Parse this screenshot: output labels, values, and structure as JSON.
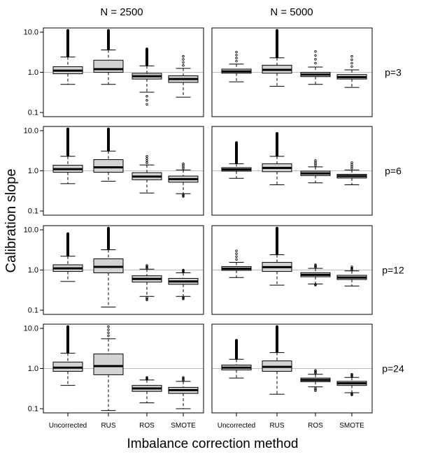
{
  "chart_data": {
    "type": "boxplot",
    "scale": "log10",
    "ylabel": "Calibration slope",
    "xlabel": "Imbalance correction method",
    "columns": [
      "N = 2500",
      "N = 5000"
    ],
    "rows": [
      "p=3",
      "p=6",
      "p=12",
      "p=24"
    ],
    "categories": [
      "Uncorrected",
      "RUS",
      "ROS",
      "SMOTE"
    ],
    "yticks": [
      {
        "value": 0.1,
        "label": "0.1"
      },
      {
        "value": 1.0,
        "label": "1.0"
      },
      {
        "value": 10.0,
        "label": "10.0"
      }
    ],
    "reference_line": 1.0,
    "panels": [
      {
        "row": "p=3",
        "column": "N = 2500",
        "boxes": [
          {
            "category": "Uncorrected",
            "whisker_low": 0.5,
            "q1": 0.92,
            "median": 1.1,
            "q3": 1.38,
            "whisker_high": 2.4,
            "outlier_max": 11.0
          },
          {
            "category": "RUS",
            "whisker_low": 0.5,
            "q1": 1.0,
            "median": 1.2,
            "q3": 2.0,
            "whisker_high": 3.6,
            "outlier_max": 11.0
          },
          {
            "category": "ROS",
            "whisker_low": 0.32,
            "q1": 0.68,
            "median": 0.8,
            "q3": 0.94,
            "whisker_high": 1.45,
            "outlier_max": 3.8,
            "outlier_min": 0.16
          },
          {
            "category": "SMOTE",
            "whisker_low": 0.24,
            "q1": 0.56,
            "median": 0.68,
            "q3": 0.82,
            "whisker_high": 1.25,
            "outlier_max": 2.5
          }
        ]
      },
      {
        "row": "p=3",
        "column": "N = 5000",
        "boxes": [
          {
            "category": "Uncorrected",
            "whisker_low": 0.58,
            "q1": 0.95,
            "median": 1.05,
            "q3": 1.2,
            "whisker_high": 1.6,
            "outlier_max": 3.2
          },
          {
            "category": "RUS",
            "whisker_low": 0.45,
            "q1": 0.95,
            "median": 1.15,
            "q3": 1.5,
            "whisker_high": 2.3,
            "outlier_max": 11.0
          },
          {
            "category": "ROS",
            "whisker_low": 0.5,
            "q1": 0.78,
            "median": 0.88,
            "q3": 1.0,
            "whisker_high": 1.35,
            "outlier_max": 3.3
          },
          {
            "category": "SMOTE",
            "whisker_low": 0.42,
            "q1": 0.68,
            "median": 0.76,
            "q3": 0.88,
            "whisker_high": 1.15,
            "outlier_max": 2.5
          }
        ]
      },
      {
        "row": "p=6",
        "column": "N = 2500",
        "boxes": [
          {
            "category": "Uncorrected",
            "whisker_low": 0.48,
            "q1": 0.92,
            "median": 1.1,
            "q3": 1.38,
            "whisker_high": 2.3,
            "outlier_max": 11.0
          },
          {
            "category": "RUS",
            "whisker_low": 0.55,
            "q1": 0.92,
            "median": 1.22,
            "q3": 1.9,
            "whisker_high": 3.1,
            "outlier_max": 11.0
          },
          {
            "category": "ROS",
            "whisker_low": 0.28,
            "q1": 0.6,
            "median": 0.72,
            "q3": 0.9,
            "whisker_high": 1.4,
            "outlier_max": 2.3
          },
          {
            "category": "SMOTE",
            "whisker_low": 0.27,
            "q1": 0.52,
            "median": 0.62,
            "q3": 0.74,
            "whisker_high": 1.05,
            "outlier_max": 1.5,
            "outlier_min": 0.23
          }
        ]
      },
      {
        "row": "p=6",
        "column": "N = 5000",
        "boxes": [
          {
            "category": "Uncorrected",
            "whisker_low": 0.65,
            "q1": 0.98,
            "median": 1.08,
            "q3": 1.2,
            "whisker_high": 1.5,
            "outlier_max": 5.0
          },
          {
            "category": "RUS",
            "whisker_low": 0.45,
            "q1": 0.95,
            "median": 1.18,
            "q3": 1.5,
            "whisker_high": 2.3,
            "outlier_max": 8.5
          },
          {
            "category": "ROS",
            "whisker_low": 0.5,
            "q1": 0.76,
            "median": 0.86,
            "q3": 0.98,
            "whisker_high": 1.25,
            "outlier_max": 1.8
          },
          {
            "category": "SMOTE",
            "whisker_low": 0.45,
            "q1": 0.66,
            "median": 0.74,
            "q3": 0.82,
            "whisker_high": 1.05,
            "outlier_max": 1.6
          }
        ]
      },
      {
        "row": "p=12",
        "column": "N = 2500",
        "boxes": [
          {
            "category": "Uncorrected",
            "whisker_low": 0.52,
            "q1": 0.92,
            "median": 1.1,
            "q3": 1.35,
            "whisker_high": 2.2,
            "outlier_max": 8.0
          },
          {
            "category": "RUS",
            "whisker_low": 0.12,
            "q1": 0.85,
            "median": 1.2,
            "q3": 1.9,
            "whisker_high": 3.2,
            "outlier_max": 11.0
          },
          {
            "category": "ROS",
            "whisker_low": 0.22,
            "q1": 0.5,
            "median": 0.6,
            "q3": 0.72,
            "whisker_high": 1.05,
            "outlier_max": 1.3,
            "outlier_min": 0.18
          },
          {
            "category": "SMOTE",
            "whisker_low": 0.22,
            "q1": 0.44,
            "median": 0.52,
            "q3": 0.62,
            "whisker_high": 0.85,
            "outlier_max": 1.0,
            "outlier_min": 0.19
          }
        ]
      },
      {
        "row": "p=12",
        "column": "N = 5000",
        "boxes": [
          {
            "category": "Uncorrected",
            "whisker_low": 0.65,
            "q1": 0.98,
            "median": 1.08,
            "q3": 1.22,
            "whisker_high": 1.55,
            "outlier_max": 3.0
          },
          {
            "category": "RUS",
            "whisker_low": 0.42,
            "q1": 0.92,
            "median": 1.18,
            "q3": 1.55,
            "whisker_high": 2.4,
            "outlier_max": 11.0
          },
          {
            "category": "ROS",
            "whisker_low": 0.45,
            "q1": 0.68,
            "median": 0.76,
            "q3": 0.86,
            "whisker_high": 1.1,
            "outlier_max": 1.35,
            "outlier_min": 0.42
          },
          {
            "category": "SMOTE",
            "whisker_low": 0.4,
            "q1": 0.58,
            "median": 0.65,
            "q3": 0.74,
            "whisker_high": 0.95,
            "outlier_max": 1.2
          }
        ]
      },
      {
        "row": "p=24",
        "column": "N = 2500",
        "boxes": [
          {
            "category": "Uncorrected",
            "whisker_low": 0.38,
            "q1": 0.85,
            "median": 1.05,
            "q3": 1.45,
            "whisker_high": 2.4,
            "outlier_max": 11.0
          },
          {
            "category": "RUS",
            "whisker_low": 0.09,
            "q1": 0.7,
            "median": 1.15,
            "q3": 2.3,
            "whisker_high": 5.5,
            "outlier_max": 11.0
          },
          {
            "category": "ROS",
            "whisker_low": 0.14,
            "q1": 0.27,
            "median": 0.32,
            "q3": 0.38,
            "whisker_high": 0.52,
            "outlier_max": 0.6
          },
          {
            "category": "SMOTE",
            "whisker_low": 0.1,
            "q1": 0.24,
            "median": 0.29,
            "q3": 0.34,
            "whisker_high": 0.48,
            "outlier_max": 0.6
          }
        ]
      },
      {
        "row": "p=24",
        "column": "N = 5000",
        "boxes": [
          {
            "category": "Uncorrected",
            "whisker_low": 0.58,
            "q1": 0.92,
            "median": 1.05,
            "q3": 1.22,
            "whisker_high": 1.7,
            "outlier_max": 5.0
          },
          {
            "category": "RUS",
            "whisker_low": 0.23,
            "q1": 0.85,
            "median": 1.1,
            "q3": 1.55,
            "whisker_high": 2.5,
            "outlier_max": 11.0
          },
          {
            "category": "ROS",
            "whisker_low": 0.35,
            "q1": 0.47,
            "median": 0.52,
            "q3": 0.58,
            "whisker_high": 0.72,
            "outlier_max": 0.9,
            "outlier_min": 0.28
          },
          {
            "category": "SMOTE",
            "whisker_low": 0.25,
            "q1": 0.38,
            "median": 0.43,
            "q3": 0.48,
            "whisker_high": 0.6,
            "outlier_max": 0.72,
            "outlier_min": 0.22
          }
        ]
      }
    ]
  }
}
